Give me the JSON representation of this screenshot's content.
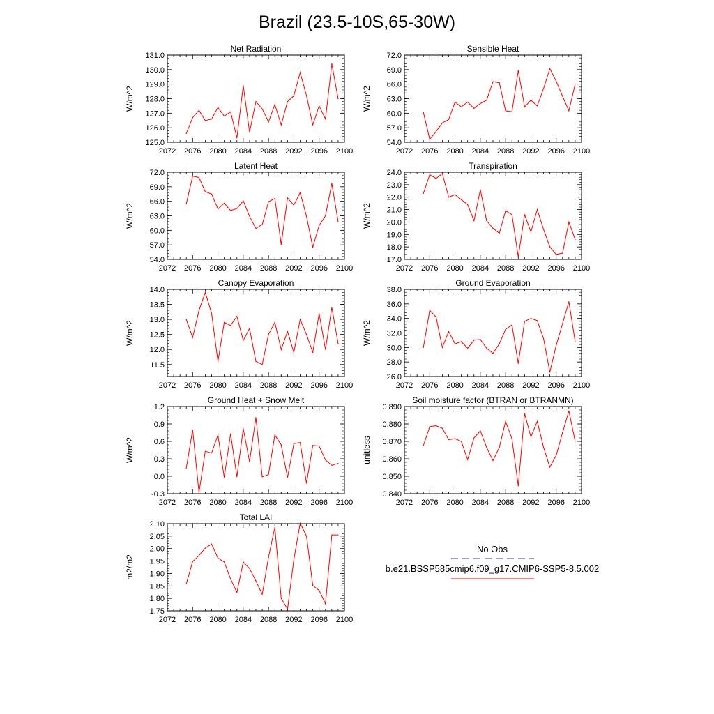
{
  "figure": {
    "title": "Brazil (23.5-10S,65-30W)",
    "legend": {
      "obs_label": "No Obs",
      "obs_color": "#3a3aa8",
      "model_label": "b.e21.BSSP585cmip6.f09_g17.CMIP6-SSP5-8.5.002",
      "model_color": "#ff0000"
    },
    "x_ticks": [
      "2072",
      "2076",
      "2080",
      "2084",
      "2088",
      "2092",
      "2096",
      "2100"
    ]
  },
  "chart_data": [
    {
      "type": "line",
      "title": "Net Radiation",
      "ylabel": "W/m^2",
      "xlim": [
        2072,
        2100
      ],
      "ylim": [
        125.0,
        131.0
      ],
      "yticks": [
        "125.0",
        "126.0",
        "127.0",
        "128.0",
        "129.0",
        "130.0",
        "131.0"
      ],
      "x": [
        2075,
        2076,
        2077,
        2078,
        2079,
        2080,
        2081,
        2082,
        2083,
        2084,
        2085,
        2086,
        2087,
        2088,
        2089,
        2090,
        2091,
        2092,
        2093,
        2094,
        2095,
        2096,
        2097,
        2098,
        2099
      ],
      "series": [
        {
          "values": [
            125.6,
            126.7,
            127.2,
            126.5,
            126.6,
            127.4,
            126.8,
            127.1,
            125.3,
            128.9,
            125.7,
            127.8,
            127.3,
            126.4,
            127.6,
            126.2,
            127.8,
            128.2,
            129.8,
            128.2,
            126.2,
            127.5,
            126.6,
            130.4,
            128.0
          ]
        }
      ]
    },
    {
      "type": "line",
      "title": "Sensible Heat",
      "ylabel": "W/m^2",
      "xlim": [
        2072,
        2100
      ],
      "ylim": [
        54.0,
        72.0
      ],
      "yticks": [
        "54.0",
        "57.0",
        "60.0",
        "63.0",
        "66.0",
        "69.0",
        "72.0"
      ],
      "x": [
        2075,
        2076,
        2077,
        2078,
        2079,
        2080,
        2081,
        2082,
        2083,
        2084,
        2085,
        2086,
        2087,
        2088,
        2089,
        2090,
        2091,
        2092,
        2093,
        2094,
        2095,
        2096,
        2097,
        2098,
        2099
      ],
      "series": [
        {
          "values": [
            60.2,
            54.6,
            56.2,
            58.0,
            58.7,
            62.3,
            61.3,
            62.3,
            61.0,
            62.0,
            62.7,
            66.5,
            66.3,
            60.5,
            60.3,
            68.8,
            61.3,
            62.7,
            61.5,
            65.1,
            69.2,
            66.6,
            63.5,
            60.5,
            66.0
          ]
        }
      ]
    },
    {
      "type": "line",
      "title": "Latent Heat",
      "ylabel": "W/m^2",
      "xlim": [
        2072,
        2100
      ],
      "ylim": [
        54.0,
        72.0
      ],
      "yticks": [
        "54.0",
        "57.0",
        "60.0",
        "63.0",
        "66.0",
        "69.0",
        "72.0"
      ],
      "x": [
        2075,
        2076,
        2077,
        2078,
        2079,
        2080,
        2081,
        2082,
        2083,
        2084,
        2085,
        2086,
        2087,
        2088,
        2089,
        2090,
        2091,
        2092,
        2093,
        2094,
        2095,
        2096,
        2097,
        2098,
        2099
      ],
      "series": [
        {
          "values": [
            65.5,
            71.2,
            70.9,
            68.0,
            67.5,
            64.4,
            65.6,
            64.1,
            64.5,
            66.1,
            62.9,
            60.4,
            61.2,
            65.9,
            66.6,
            57.1,
            66.7,
            65.2,
            67.8,
            62.9,
            56.5,
            61.0,
            63.0,
            69.7,
            61.8
          ]
        }
      ]
    },
    {
      "type": "line",
      "title": "Transpiration",
      "ylabel": "W/m^2",
      "xlim": [
        2072,
        2100
      ],
      "ylim": [
        17.0,
        24.0
      ],
      "yticks": [
        "17.0",
        "18.0",
        "19.0",
        "20.0",
        "21.0",
        "22.0",
        "23.0",
        "24.0"
      ],
      "x": [
        2075,
        2076,
        2077,
        2078,
        2079,
        2080,
        2081,
        2082,
        2083,
        2084,
        2085,
        2086,
        2087,
        2088,
        2089,
        2090,
        2091,
        2092,
        2093,
        2094,
        2095,
        2096,
        2097,
        2098,
        2099
      ],
      "series": [
        {
          "values": [
            22.3,
            23.8,
            23.5,
            23.9,
            22.0,
            22.2,
            21.8,
            21.4,
            20.1,
            22.6,
            20.1,
            19.5,
            19.1,
            20.9,
            20.6,
            17.2,
            20.6,
            19.2,
            21.0,
            19.4,
            18.0,
            17.4,
            17.5,
            20.0,
            18.6
          ]
        }
      ]
    },
    {
      "type": "line",
      "title": "Canopy Evaporation",
      "ylabel": "W/m^2",
      "xlim": [
        2072,
        2100
      ],
      "ylim": [
        11.1,
        14.0
      ],
      "yticks": [
        "11.5",
        "12.0",
        "12.5",
        "13.0",
        "13.5",
        "14.0"
      ],
      "x": [
        2075,
        2076,
        2077,
        2078,
        2079,
        2080,
        2081,
        2082,
        2083,
        2084,
        2085,
        2086,
        2087,
        2088,
        2089,
        2090,
        2091,
        2092,
        2093,
        2094,
        2095,
        2096,
        2097,
        2098,
        2099
      ],
      "series": [
        {
          "values": [
            13.0,
            12.4,
            13.3,
            13.9,
            13.2,
            11.6,
            12.9,
            12.8,
            13.1,
            12.3,
            12.7,
            11.6,
            11.5,
            12.5,
            12.9,
            12.0,
            12.6,
            11.9,
            13.0,
            12.5,
            11.9,
            13.2,
            12.0,
            13.4,
            12.2
          ]
        }
      ]
    },
    {
      "type": "line",
      "title": "Ground Evaporation",
      "ylabel": "W/m^2",
      "xlim": [
        2072,
        2100
      ],
      "ylim": [
        26.0,
        38.0
      ],
      "yticks": [
        "26.0",
        "28.0",
        "30.0",
        "32.0",
        "34.0",
        "36.0",
        "38.0"
      ],
      "x": [
        2075,
        2076,
        2077,
        2078,
        2079,
        2080,
        2081,
        2082,
        2083,
        2084,
        2085,
        2086,
        2087,
        2088,
        2089,
        2090,
        2091,
        2092,
        2093,
        2094,
        2095,
        2096,
        2097,
        2098,
        2099
      ],
      "series": [
        {
          "values": [
            30.0,
            35.1,
            34.2,
            30.0,
            32.2,
            30.5,
            30.8,
            29.9,
            31.0,
            31.1,
            29.9,
            29.2,
            30.5,
            32.5,
            33.1,
            27.8,
            33.6,
            34.0,
            33.7,
            31.2,
            26.6,
            30.3,
            33.3,
            36.3,
            30.8
          ]
        }
      ]
    },
    {
      "type": "line",
      "title": "Ground Heat + Snow Melt",
      "ylabel": "W/m^2",
      "xlim": [
        2072,
        2100
      ],
      "ylim": [
        -0.3,
        1.2
      ],
      "yticks": [
        "-0.3",
        "0.0",
        "0.3",
        "0.6",
        "0.9",
        "1.2"
      ],
      "x": [
        2075,
        2076,
        2077,
        2078,
        2079,
        2080,
        2081,
        2082,
        2083,
        2084,
        2085,
        2086,
        2087,
        2088,
        2089,
        2090,
        2091,
        2092,
        2093,
        2094,
        2095,
        2096,
        2097,
        2098,
        2099
      ],
      "series": [
        {
          "values": [
            0.14,
            0.8,
            -0.28,
            0.43,
            0.4,
            0.71,
            -0.02,
            0.73,
            -0.01,
            0.82,
            0.25,
            1.01,
            -0.01,
            0.03,
            0.71,
            0.54,
            -0.02,
            0.56,
            0.58,
            -0.12,
            0.53,
            0.52,
            0.28,
            0.19,
            0.22
          ]
        }
      ]
    },
    {
      "type": "line",
      "title": "Soil moisture factor (BTRAN or BTRANMN)",
      "ylabel": "unitless",
      "xlim": [
        2072,
        2100
      ],
      "ylim": [
        0.84,
        0.89
      ],
      "yticks": [
        "0.840",
        "0.850",
        "0.860",
        "0.870",
        "0.880",
        "0.890"
      ],
      "x": [
        2075,
        2076,
        2077,
        2078,
        2079,
        2080,
        2081,
        2082,
        2083,
        2084,
        2085,
        2086,
        2087,
        2088,
        2089,
        2090,
        2091,
        2092,
        2093,
        2094,
        2095,
        2096,
        2097,
        2098,
        2099
      ],
      "series": [
        {
          "values": [
            0.8675,
            0.8785,
            0.879,
            0.8775,
            0.871,
            0.8715,
            0.87,
            0.8595,
            0.872,
            0.876,
            0.8665,
            0.859,
            0.8665,
            0.8815,
            0.8715,
            0.8445,
            0.886,
            0.8725,
            0.8815,
            0.8665,
            0.8552,
            0.862,
            0.875,
            0.8875,
            0.87
          ]
        }
      ]
    },
    {
      "type": "line",
      "title": "Total LAI",
      "ylabel": "m2/m2",
      "xlim": [
        2072,
        2100
      ],
      "ylim": [
        1.75,
        2.1
      ],
      "yticks": [
        "1.75",
        "1.80",
        "1.85",
        "1.90",
        "1.95",
        "2.00",
        "2.05",
        "2.10"
      ],
      "x": [
        2075,
        2076,
        2077,
        2078,
        2079,
        2080,
        2081,
        2082,
        2083,
        2084,
        2085,
        2086,
        2087,
        2088,
        2089,
        2090,
        2091,
        2092,
        2093,
        2094,
        2095,
        2096,
        2097,
        2098,
        2099
      ],
      "series": [
        {
          "values": [
            1.858,
            1.948,
            1.972,
            2.002,
            2.018,
            1.962,
            1.946,
            1.878,
            1.824,
            1.946,
            1.92,
            1.87,
            1.816,
            1.965,
            2.085,
            1.8,
            1.757,
            1.955,
            2.102,
            2.05,
            1.852,
            1.832,
            1.778,
            2.055,
            2.055
          ]
        }
      ]
    }
  ]
}
